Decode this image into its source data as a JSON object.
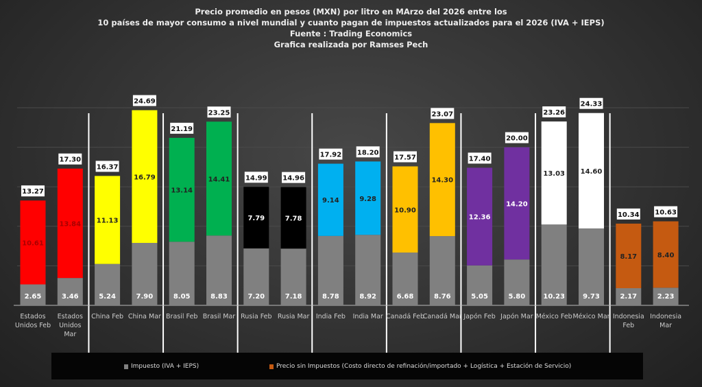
{
  "title_lines": [
    "Precio promedio en pesos (MXN) por litro en MArzo del 2026 entre los",
    "10 países de mayor consumo a nivel mundial y cuanto pagan de impuestos actualizados para el 2026 (IVA + IEPS)",
    "Fuente : Trading Economics",
    "Grafica realizada por Ramses Pech"
  ],
  "chart_data": {
    "type": "bar",
    "stacked": true,
    "ylim": [
      0,
      25
    ],
    "grid": true,
    "legend_position": "bottom",
    "categories": [
      "Estados Unidos  Feb",
      "Estados Unidos Mar",
      "China Feb",
      "China Mar",
      "Brasil Feb",
      "Brasil Mar",
      "Rusia Feb",
      "Rusia Mar",
      "India Feb",
      "India Mar",
      "Canadá Feb",
      "Canadá Mar",
      "Japón Feb",
      "Japón Mar",
      "México Feb",
      "México Mar",
      "Indonesia Feb",
      "Indonesia Mar"
    ],
    "series": [
      {
        "name": "Impuesto (IVA + IEPS)",
        "color": "#808080",
        "values": [
          2.65,
          3.46,
          5.24,
          7.9,
          8.05,
          8.83,
          7.2,
          7.18,
          8.78,
          8.92,
          6.68,
          8.76,
          5.05,
          5.8,
          10.23,
          9.73,
          2.17,
          2.23
        ]
      },
      {
        "name": "Precio sin Impuestos (Costo directo de refinación/importado + Logística + Estación de Servicio)",
        "color": "#c55a11",
        "values": [
          10.61,
          13.84,
          11.13,
          16.79,
          13.14,
          14.41,
          7.79,
          7.78,
          9.14,
          9.28,
          10.9,
          14.3,
          12.36,
          14.2,
          13.03,
          14.6,
          8.17,
          8.4
        ]
      }
    ],
    "totals": [
      "13.27",
      "17.30",
      "16.37",
      "24.69",
      "21.19",
      "23.25",
      "14.99",
      "14.96",
      "17.92",
      "18.20",
      "17.57",
      "23.07",
      "17.40",
      "20.00",
      "23.26",
      "24.33",
      "10.34",
      "10.63"
    ],
    "bar_colors": [
      "#ff0000",
      "#ff0000",
      "#ffff00",
      "#ffff00",
      "#00b050",
      "#00b050",
      "#000000",
      "#000000",
      "#00b0f0",
      "#00b0f0",
      "#ffc000",
      "#ffc000",
      "#7030a0",
      "#7030a0",
      "#ffffff",
      "#ffffff",
      "#c55a11",
      "#c55a11"
    ]
  }
}
